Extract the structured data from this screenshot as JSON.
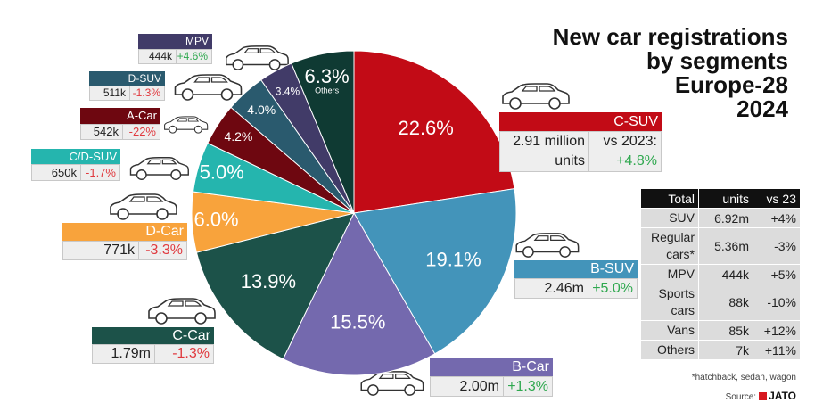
{
  "chart_data": {
    "type": "pie",
    "title": [
      "New car registrations",
      "by segments",
      "Europe-28",
      "2024"
    ],
    "categories": [
      "C-SUV",
      "B-SUV",
      "B-Car",
      "C-Car",
      "D-Car",
      "C/D-SUV",
      "A-Car",
      "D-SUV",
      "MPV",
      "Others"
    ],
    "values": [
      22.6,
      19.1,
      15.5,
      13.9,
      6.0,
      5.0,
      4.2,
      4.0,
      3.4,
      6.3
    ],
    "value_labels": [
      "22.6%",
      "19.1%",
      "15.5%",
      "13.9%",
      "6.0%",
      "5.0%",
      "4.2%",
      "4.0%",
      "3.4%",
      "6.3%"
    ],
    "colors": [
      "#c20b16",
      "#4394ba",
      "#7469ae",
      "#1c5249",
      "#f8a33c",
      "#25b5ae",
      "#6e0710",
      "#2a5a6e",
      "#413b68",
      "#0f3a33"
    ],
    "unit_labels": [
      "2.91 million units",
      "2.46m",
      "2.00m",
      "1.79m",
      "771k",
      "650k",
      "542k",
      "511k",
      "444k",
      null
    ],
    "changes": [
      4.8,
      5.0,
      1.3,
      -1.3,
      -3.3,
      -1.7,
      -22,
      -1.3,
      4.6,
      null
    ],
    "change_labels": [
      "+4.8%",
      "+5.0%",
      "+1.3%",
      "-1.3%",
      "-3.3%",
      "-1.7%",
      "-22%",
      "-1.3%",
      "+4.6%",
      null
    ],
    "compare_label": "vs 2023:"
  },
  "table": {
    "header": [
      "Total",
      "units",
      "vs 23"
    ],
    "rows": [
      [
        "SUV",
        "6.92m",
        "+4%"
      ],
      [
        "Regular cars*",
        "5.36m",
        "-3%"
      ],
      [
        "MPV",
        "444k",
        "+5%"
      ],
      [
        "Sports cars",
        "88k",
        "-10%"
      ],
      [
        "Vans",
        "85k",
        "+12%"
      ],
      [
        "Others",
        "7k",
        "+11%"
      ]
    ],
    "footnote": "*hatchback, sedan, wagon"
  },
  "source": {
    "label": "Source:",
    "brand": "JATO"
  }
}
